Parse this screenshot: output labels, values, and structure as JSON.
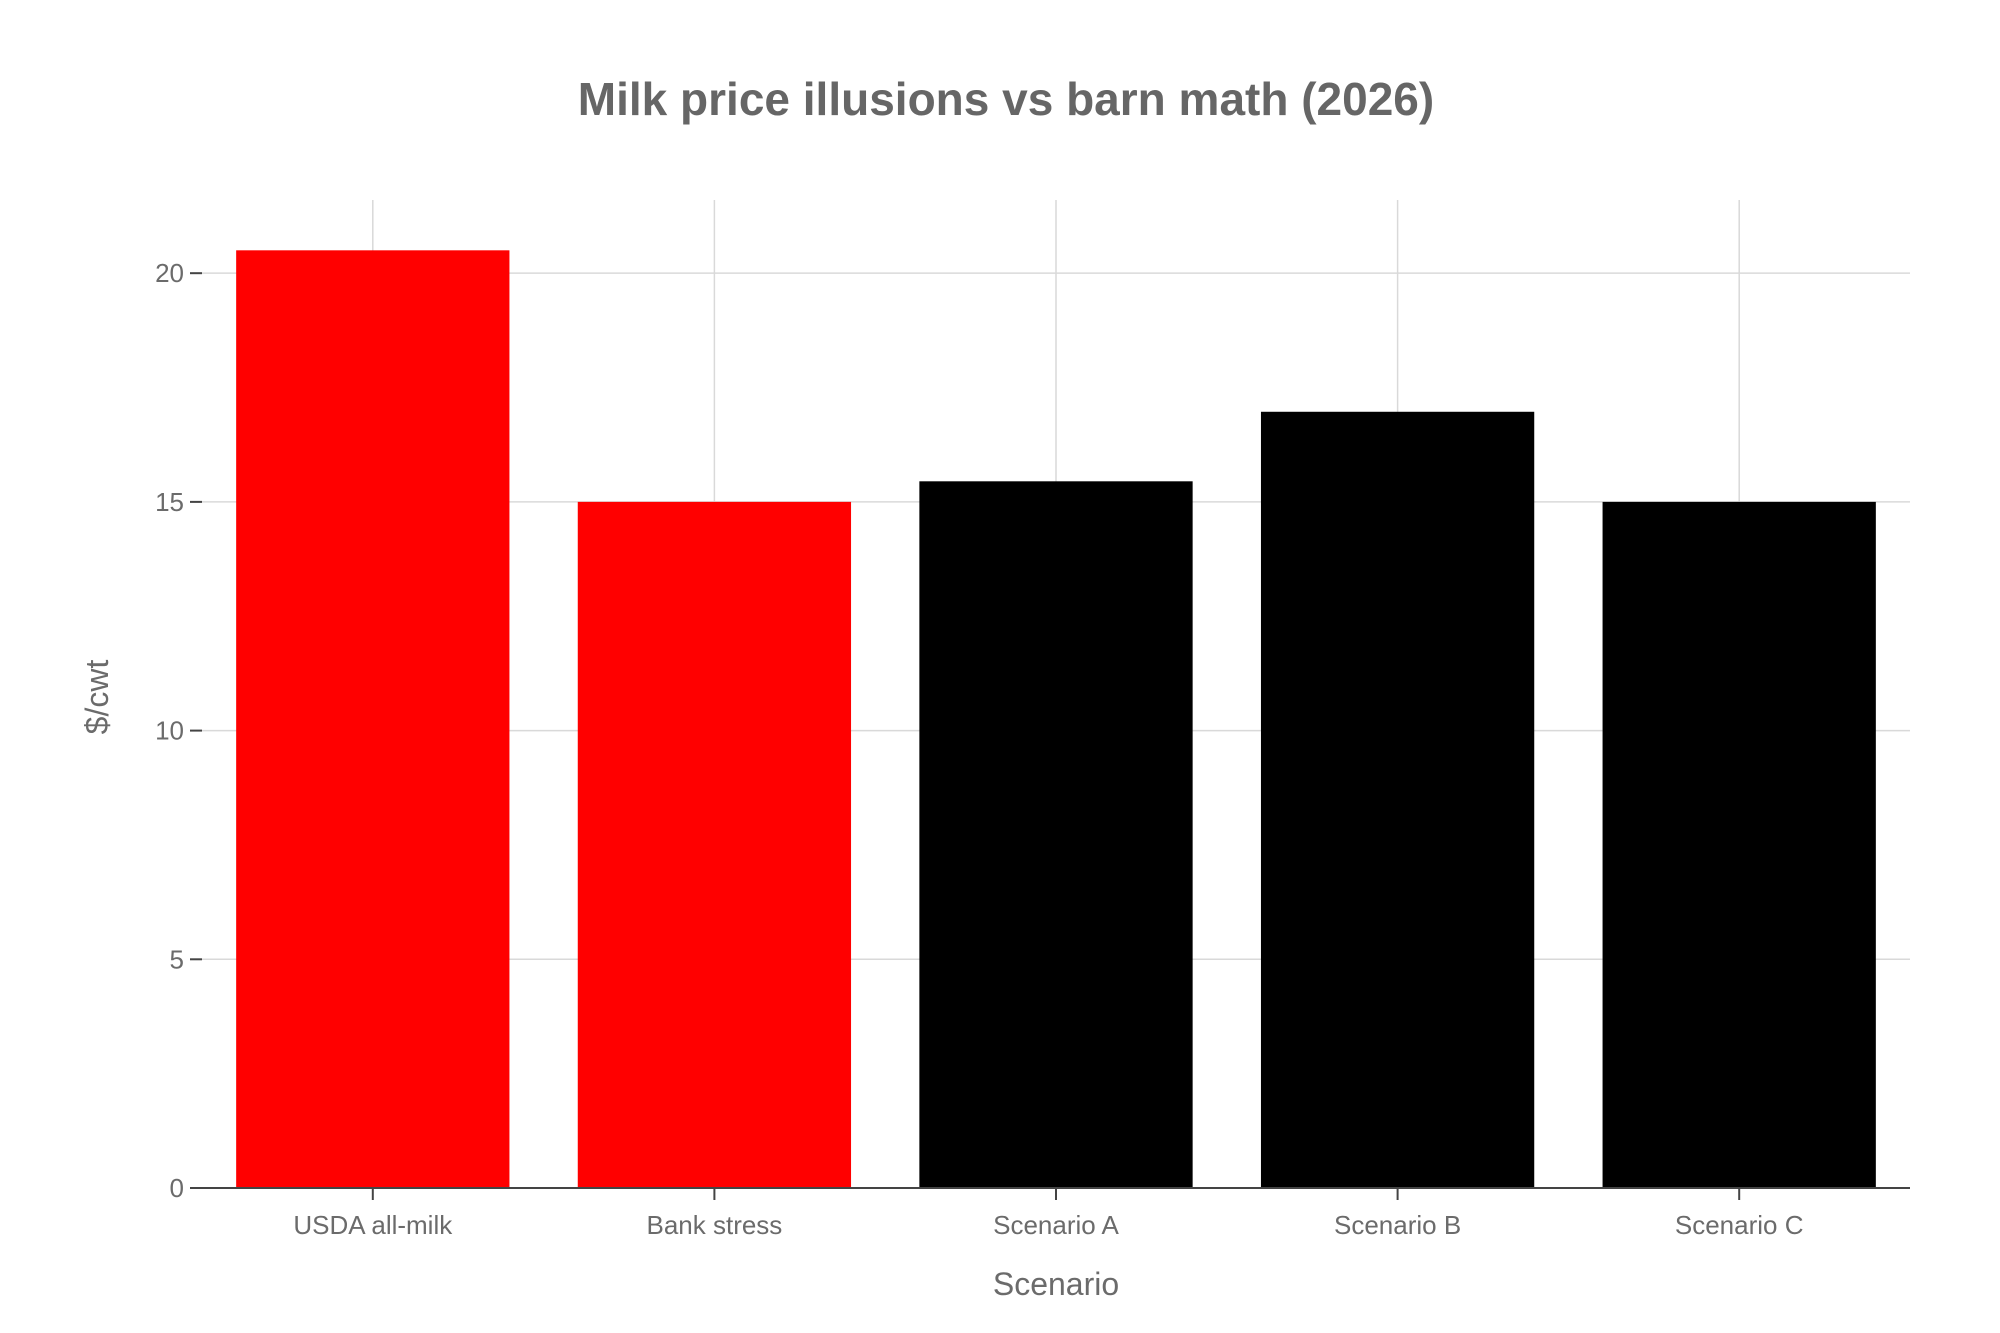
{
  "chart_data": {
    "type": "bar",
    "title": "Milk price illusions vs barn math (2026)",
    "xlabel": "Scenario",
    "ylabel": "$/cwt",
    "categories": [
      "USDA all-milk",
      "Bank stress",
      "Scenario A",
      "Scenario B",
      "Scenario C"
    ],
    "values": [
      20.5,
      15.0,
      15.45,
      16.97,
      15.0
    ],
    "bar_colors": [
      "#ff0000",
      "#ff0000",
      "#000000",
      "#000000",
      "#000000"
    ],
    "ylim": [
      0,
      21.6
    ],
    "yticks": [
      0,
      5,
      10,
      15,
      20
    ],
    "grid": true,
    "legend": "none"
  }
}
